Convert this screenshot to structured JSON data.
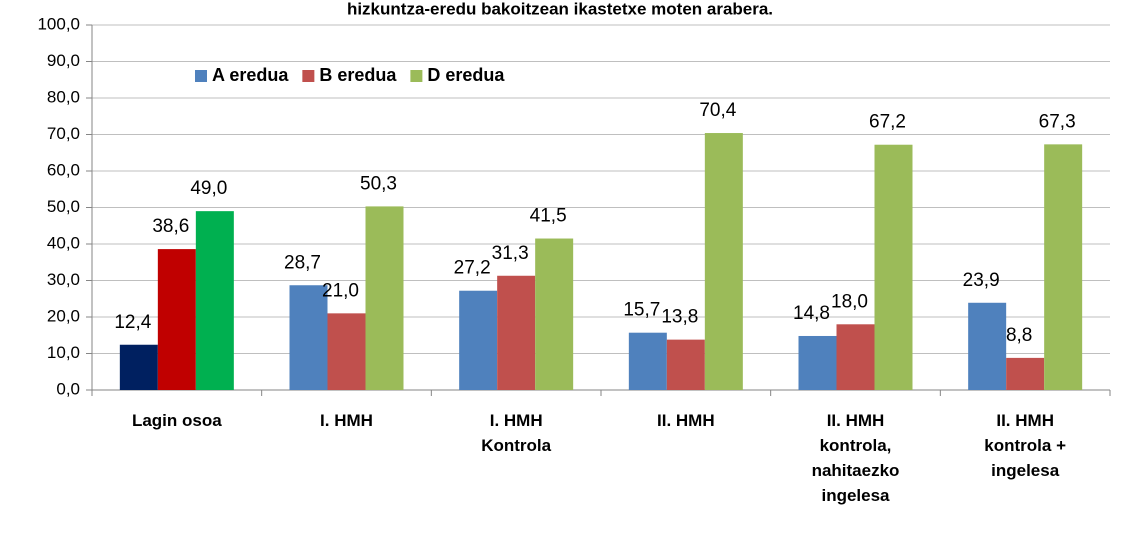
{
  "chart_data": {
    "type": "bar",
    "title": "hizkuntza-eredu bakoitzean ikastetxe moten arabera.",
    "categories": [
      "Lagin osoa",
      "I. HMH",
      "I. HMH\nKontrola",
      "II. HMH",
      "II. HMH\nkontrola,\nnahitaezko\ningelesa",
      "II. HMH\nkontrola +\ningelesa"
    ],
    "series": [
      {
        "name": "A eredua",
        "color": "#4f81bd",
        "colors": [
          "#002060",
          "#4f81bd",
          "#4f81bd",
          "#4f81bd",
          "#4f81bd",
          "#4f81bd"
        ],
        "values": [
          12.4,
          28.7,
          27.2,
          15.7,
          14.8,
          23.9
        ],
        "value_labels": [
          "12,4",
          "28,7",
          "27,2",
          "15,7",
          "14,8",
          "23,9"
        ]
      },
      {
        "name": "B eredua",
        "color": "#c0504d",
        "colors": [
          "#c00000",
          "#c0504d",
          "#c0504d",
          "#c0504d",
          "#c0504d",
          "#c0504d"
        ],
        "values": [
          38.6,
          21.0,
          31.3,
          13.8,
          18.0,
          8.8
        ],
        "value_labels": [
          "38,6",
          "21,0",
          "31,3",
          "13,8",
          "18,0",
          "8,8"
        ]
      },
      {
        "name": "D eredua",
        "color": "#9bbb59",
        "colors": [
          "#00b050",
          "#9bbb59",
          "#9bbb59",
          "#9bbb59",
          "#9bbb59",
          "#9bbb59"
        ],
        "values": [
          49.0,
          50.3,
          41.5,
          70.4,
          67.2,
          67.3
        ],
        "value_labels": [
          "49,0",
          "50,3",
          "41,5",
          "70,4",
          "67,2",
          "67,3"
        ]
      }
    ],
    "ylim": [
      0,
      100
    ],
    "yticks": [
      {
        "value": 0,
        "label": "0,0"
      },
      {
        "value": 10,
        "label": "10,0"
      },
      {
        "value": 20,
        "label": "20,0"
      },
      {
        "value": 30,
        "label": "30,0"
      },
      {
        "value": 40,
        "label": "40,0"
      },
      {
        "value": 50,
        "label": "50,0"
      },
      {
        "value": 60,
        "label": "60,0"
      },
      {
        "value": 70,
        "label": "70,0"
      },
      {
        "value": 80,
        "label": "80,0"
      },
      {
        "value": 90,
        "label": "90,0"
      },
      {
        "value": 100,
        "label": "100,0"
      }
    ],
    "grid": true,
    "legend": "top-left"
  }
}
